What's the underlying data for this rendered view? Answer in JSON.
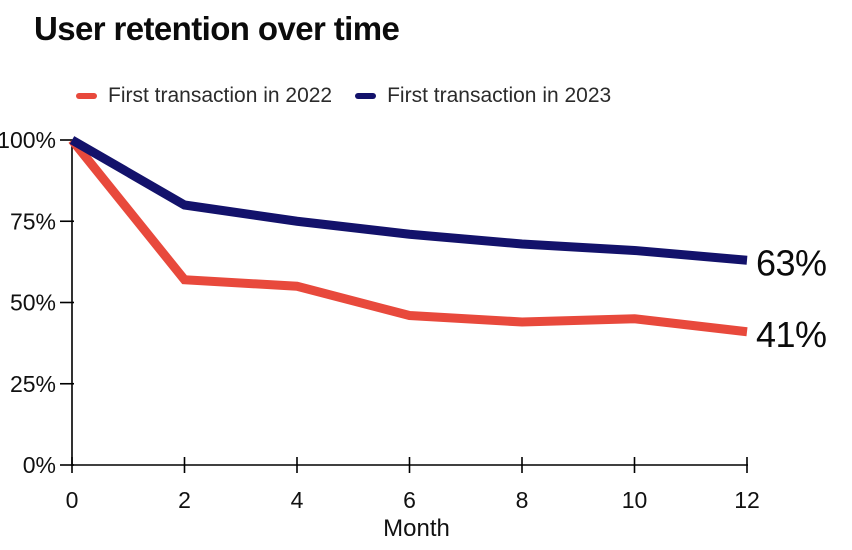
{
  "title": "User retention over time",
  "chart_data": {
    "type": "line",
    "title": "User retention over time",
    "xlabel": "Month",
    "ylabel": "",
    "x": [
      0,
      2,
      4,
      6,
      8,
      10,
      12
    ],
    "x_tick_labels": [
      "0",
      "2",
      "4",
      "6",
      "8",
      "10",
      "12"
    ],
    "y_ticks": [
      {
        "value": 0,
        "label": "0%"
      },
      {
        "value": 25,
        "label": "25%"
      },
      {
        "value": 50,
        "label": "50%"
      },
      {
        "value": 75,
        "label": "75%"
      },
      {
        "value": 100,
        "label": "100%"
      }
    ],
    "xlim": [
      0,
      12
    ],
    "ylim": [
      0,
      100
    ],
    "grid": false,
    "legend_position": "top",
    "series": [
      {
        "name": "First transaction in 2022",
        "color": "#e8493c",
        "values": [
          100,
          57,
          55,
          46,
          44,
          45,
          41
        ],
        "end_label": "41%"
      },
      {
        "name": "First transaction in 2023",
        "color": "#13126b",
        "values": [
          100,
          80,
          75,
          71,
          68,
          66,
          63
        ],
        "end_label": "63%"
      }
    ],
    "axis_color": "#000000",
    "tick_text_color": "#111111",
    "end_label_color": "#0b0b0b"
  }
}
